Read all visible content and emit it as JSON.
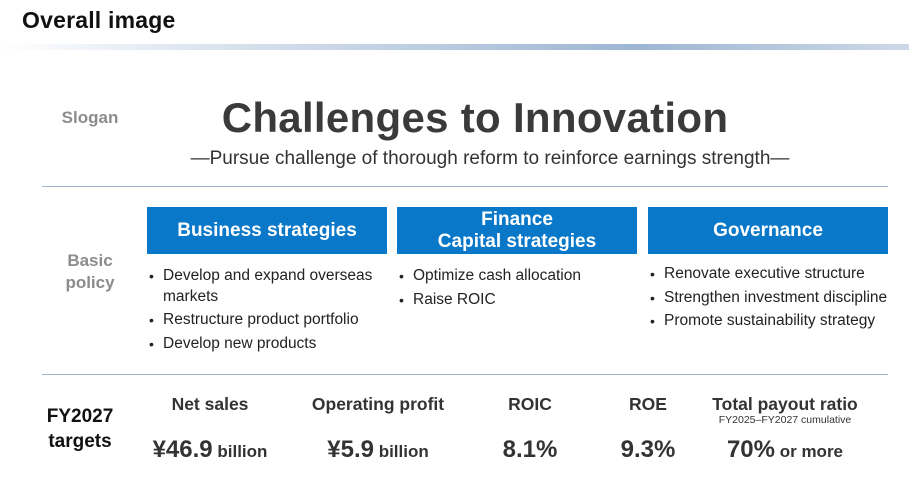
{
  "header": {
    "title": "Overall image"
  },
  "labels": {
    "slogan": "Slogan",
    "basic_policy_1": "Basic",
    "basic_policy_2": "policy",
    "targets_1": "FY2027",
    "targets_2": "targets"
  },
  "slogan": {
    "main": "Challenges to Innovation",
    "sub": "—Pursue challenge of thorough reform to reinforce earnings strength—"
  },
  "strategies": [
    {
      "title_lines": [
        "Business strategies"
      ],
      "items": [
        "Develop and expand overseas markets",
        "Restructure product portfolio",
        "Develop new products"
      ]
    },
    {
      "title_lines": [
        "Finance",
        "Capital strategies"
      ],
      "items": [
        "Optimize cash allocation",
        "Raise ROIC"
      ]
    },
    {
      "title_lines": [
        "Governance"
      ],
      "items": [
        "Renovate executive structure",
        "Strengthen investment discipline",
        "Promote sustainability strategy"
      ]
    }
  ],
  "targets": [
    {
      "name": "Net sales",
      "value": "¥46.9",
      "unit": " billion"
    },
    {
      "name": "Operating profit",
      "value": "¥5.9",
      "unit": " billion"
    },
    {
      "name": "ROIC",
      "value": "8.1%",
      "unit": ""
    },
    {
      "name": "ROE",
      "value": "9.3%",
      "unit": ""
    },
    {
      "name": "Total payout ratio",
      "sub": "FY2025–FY2027 cumulative",
      "value": "70%",
      "unit": " or more"
    }
  ],
  "colors": {
    "accent": "#0a78c8",
    "rule": "#9fb4cc",
    "label_gray": "#8c8c8c"
  }
}
